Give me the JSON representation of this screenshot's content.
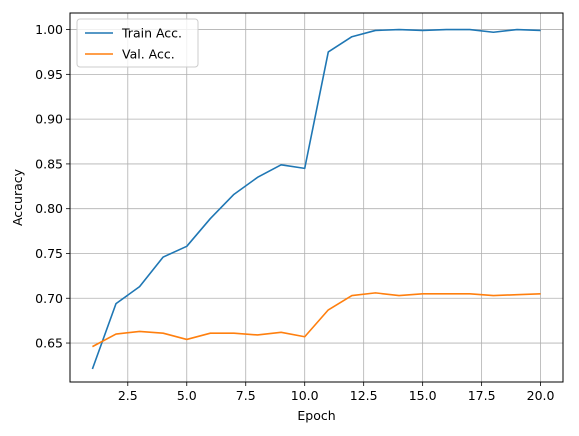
{
  "chart_data": {
    "type": "line",
    "title": "",
    "xlabel": "Epoch",
    "ylabel": "Accuracy",
    "xlim": [
      0.05,
      20.95
    ],
    "ylim": [
      0.6065,
      1.0185
    ],
    "xticks": [
      2.5,
      5.0,
      7.5,
      10.0,
      12.5,
      15.0,
      17.5,
      20.0
    ],
    "xtick_labels": [
      "2.5",
      "5.0",
      "7.5",
      "10.0",
      "12.5",
      "15.0",
      "17.5",
      "20.0"
    ],
    "yticks": [
      0.65,
      0.7,
      0.75,
      0.8,
      0.85,
      0.9,
      0.95,
      1.0
    ],
    "ytick_labels": [
      "0.65",
      "0.70",
      "0.75",
      "0.80",
      "0.85",
      "0.90",
      "0.95",
      "1.00"
    ],
    "grid": true,
    "legend_position": "upper-left",
    "x": [
      1,
      2,
      3,
      4,
      5,
      6,
      7,
      8,
      9,
      10,
      11,
      12,
      13,
      14,
      15,
      16,
      17,
      18,
      19,
      20
    ],
    "series": [
      {
        "name": "Train Acc.",
        "color": "#1f77b4",
        "values": [
          0.621,
          0.694,
          0.713,
          0.746,
          0.758,
          0.789,
          0.816,
          0.835,
          0.849,
          0.845,
          0.975,
          0.992,
          0.999,
          1.0,
          0.999,
          1.0,
          1.0,
          0.997,
          1.0,
          0.999
        ]
      },
      {
        "name": "Val. Acc.",
        "color": "#ff7f0e",
        "values": [
          0.646,
          0.66,
          0.663,
          0.661,
          0.654,
          0.661,
          0.661,
          0.659,
          0.662,
          0.657,
          0.687,
          0.703,
          0.706,
          0.703,
          0.705,
          0.705,
          0.705,
          0.703,
          0.704,
          0.705
        ]
      }
    ]
  }
}
